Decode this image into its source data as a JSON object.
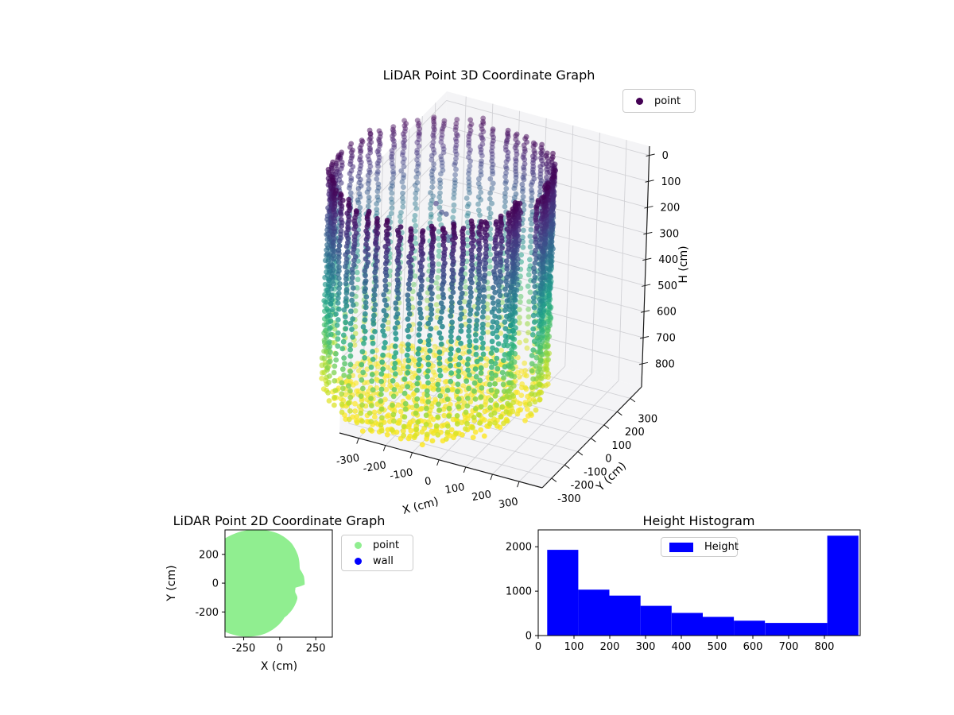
{
  "page": {
    "background": "#ffffff"
  },
  "plot3d": {
    "title": "LiDAR Point 3D Coordinate Graph",
    "legend": [
      {
        "label": "point",
        "color": "#440154"
      }
    ],
    "xaxis": {
      "label": "X (cm)",
      "ticks": [
        -300,
        -200,
        -100,
        0,
        100,
        200,
        300
      ]
    },
    "yaxis": {
      "label": "Y (cm)",
      "ticks": [
        -300,
        -200,
        -100,
        0,
        100,
        200,
        300
      ]
    },
    "zaxis": {
      "label": "H (cm)",
      "ticks": [
        0,
        100,
        200,
        300,
        400,
        500,
        600,
        700,
        800
      ]
    }
  },
  "plot2d": {
    "title": "LiDAR Point 2D Coordinate Graph",
    "legend": [
      {
        "label": "point",
        "color": "#90ee90"
      },
      {
        "label": "wall",
        "color": "#0000ff"
      }
    ],
    "xaxis": {
      "label": "X (cm)",
      "ticks": [
        -250,
        0,
        250
      ]
    },
    "yaxis": {
      "label": "Y (cm)",
      "ticks": [
        -200,
        0,
        200
      ]
    }
  },
  "histogram": {
    "title": "Height Histogram",
    "legend": [
      {
        "label": "Height",
        "color": "#0000ff"
      }
    ],
    "xticks": [
      0,
      100,
      200,
      300,
      400,
      500,
      600,
      700,
      800
    ],
    "yticks": [
      0,
      1000,
      2000
    ]
  },
  "chart_data": [
    {
      "type": "scatter",
      "projection": "3d",
      "title": "LiDAR Point 3D Coordinate Graph",
      "series": [
        {
          "name": "point",
          "colormap": "viridis",
          "color_by": "H (cm)"
        }
      ],
      "xlabel": "X (cm)",
      "ylabel": "Y (cm)",
      "zlabel": "H (cm)",
      "xlim": [
        -372,
        386
      ],
      "ylim": [
        -372,
        386
      ],
      "zlim_inverted_top_to_bottom": [
        -35,
        889
      ],
      "description": "Room-scan point cloud: vertical wall columns around the room perimeter colored dark purple (H=0, top) to yellow (H~880, bottom), plus a yellow floor disk and a few stray dark ceiling points",
      "params": {
        "footprint_center_cm": [
          -100,
          -10
        ],
        "footprint_angle_deg": [
          -90,
          -60,
          -35,
          -22,
          -14,
          -6,
          0,
          12,
          25,
          40,
          58,
          75,
          90,
          110,
          135,
          160,
          180,
          205,
          230,
          250,
          270
        ],
        "footprint_radius_cm": [
          340,
          265,
          250,
          242,
          212,
          210,
          273,
          274,
          262,
          300,
          341,
          365,
          378,
          400,
          430,
          450,
          462,
          460,
          430,
          385,
          340
        ],
        "wall_height_range_cm": [
          25,
          852
        ],
        "wall_columns": 60,
        "floor_height_range_cm": [
          856,
          888
        ],
        "ceiling_stray_points": 10,
        "ceiling_stray_height_range_cm": [
          170,
          300
        ]
      }
    },
    {
      "type": "scatter",
      "projection": "2d",
      "title": "LiDAR Point 2D Coordinate Graph",
      "series": [
        {
          "name": "point",
          "color": "#90ee90"
        },
        {
          "name": "wall",
          "color": "#0000ff"
        }
      ],
      "xlabel": "X (cm)",
      "ylabel": "Y (cm)",
      "xlim": [
        -380,
        365
      ],
      "ylim": [
        -375,
        370
      ],
      "description": "Top-down footprint of the scan: solid light-green region (same footprint polygon as the 3D plot) clipped by the axes; no blue wall points visible"
    },
    {
      "type": "histogram",
      "title": "Height Histogram",
      "series_name": "Height",
      "bar_color": "#0000ff",
      "bin_edges": [
        25,
        112,
        199,
        286,
        373,
        460,
        547,
        634,
        721,
        808,
        895
      ],
      "counts": [
        1930,
        1035,
        900,
        670,
        510,
        420,
        335,
        285,
        285,
        2250
      ],
      "xlim": [
        0,
        900
      ],
      "ylim": [
        0,
        2380
      ]
    }
  ]
}
